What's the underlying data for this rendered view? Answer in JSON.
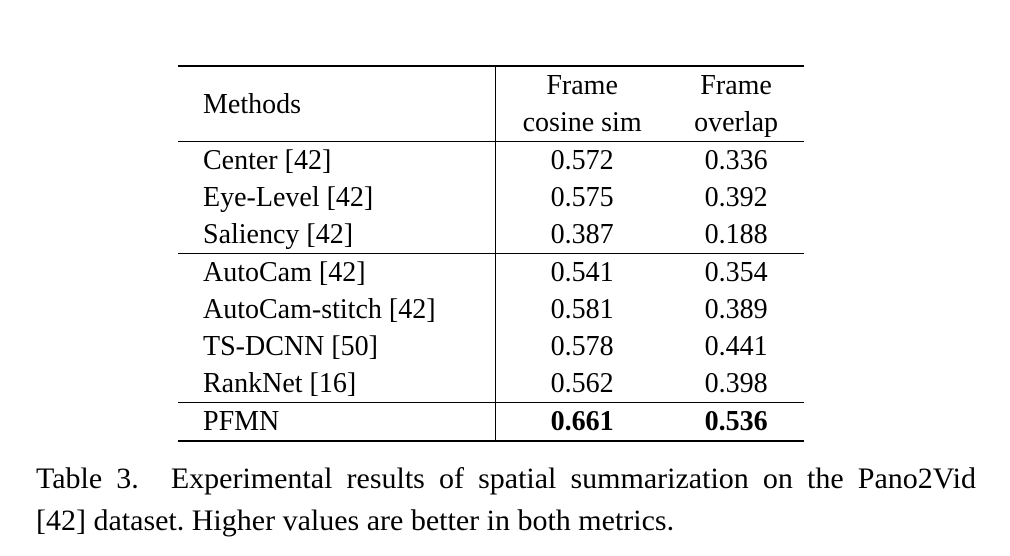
{
  "table": {
    "headers": {
      "methods": "Methods",
      "cosine_line1": "Frame",
      "cosine_line2": "cosine sim",
      "overlap_line1": "Frame",
      "overlap_line2": "overlap"
    },
    "rows": [
      {
        "method": "Center [42]",
        "cosine": "0.572",
        "overlap": "0.336"
      },
      {
        "method": "Eye-Level [42]",
        "cosine": "0.575",
        "overlap": "0.392"
      },
      {
        "method": "Saliency [42]",
        "cosine": "0.387",
        "overlap": "0.188"
      },
      {
        "method": "AutoCam [42]",
        "cosine": "0.541",
        "overlap": "0.354"
      },
      {
        "method": "AutoCam-stitch [42]",
        "cosine": "0.581",
        "overlap": "0.389"
      },
      {
        "method": "TS-DCNN [50]",
        "cosine": "0.578",
        "overlap": "0.441"
      },
      {
        "method": "RankNet [16]",
        "cosine": "0.562",
        "overlap": "0.398"
      },
      {
        "method": "PFMN",
        "cosine": "0.661",
        "overlap": "0.536"
      }
    ]
  },
  "caption": {
    "label": "Table 3.",
    "text": "Experimental results of spatial summarization on the Pano2Vid [42] dataset. Higher values are better in both metrics."
  }
}
